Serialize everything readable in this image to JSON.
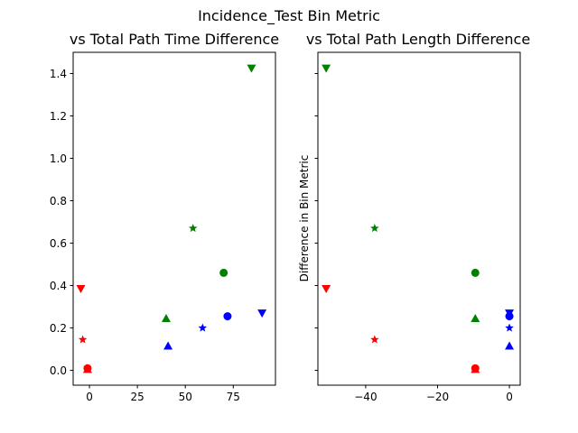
{
  "figure": {
    "suptitle": "Incidence_Test Bin Metric"
  },
  "colors": {
    "red": "#ff0000",
    "green": "#008000",
    "blue": "#0000ff"
  },
  "chart_data": [
    {
      "type": "scatter",
      "title": "vs Total Path Time Difference",
      "xlabel": "",
      "ylabel": "",
      "xlim": [
        -8.5,
        97
      ],
      "ylim": [
        -0.07,
        1.5
      ],
      "xticks": [
        0,
        25,
        50,
        75
      ],
      "yticks": [
        0.0,
        0.2,
        0.4,
        0.6,
        0.8,
        1.0,
        1.2,
        1.4
      ],
      "ytick_labels": [
        "0.0",
        "0.2",
        "0.4",
        "0.6",
        "0.8",
        "1.0",
        "1.2",
        "1.4"
      ],
      "xtick_labels": [
        "0",
        "25",
        "50",
        "75"
      ],
      "grid": false,
      "points": [
        {
          "x": -1,
          "y": 0.01,
          "color": "red",
          "marker": "circle"
        },
        {
          "x": -1,
          "y": 0.005,
          "color": "red",
          "marker": "triangle-up"
        },
        {
          "x": -3.5,
          "y": 0.145,
          "color": "red",
          "marker": "star"
        },
        {
          "x": -4.5,
          "y": 0.385,
          "color": "red",
          "marker": "triangle-down"
        },
        {
          "x": 70,
          "y": 0.46,
          "color": "green",
          "marker": "circle"
        },
        {
          "x": 40,
          "y": 0.245,
          "color": "green",
          "marker": "triangle-up"
        },
        {
          "x": 54,
          "y": 0.67,
          "color": "green",
          "marker": "star"
        },
        {
          "x": 84.5,
          "y": 1.425,
          "color": "green",
          "marker": "triangle-down"
        },
        {
          "x": 72,
          "y": 0.255,
          "color": "blue",
          "marker": "circle"
        },
        {
          "x": 41,
          "y": 0.115,
          "color": "blue",
          "marker": "triangle-up"
        },
        {
          "x": 59,
          "y": 0.2,
          "color": "blue",
          "marker": "star"
        },
        {
          "x": 90,
          "y": 0.27,
          "color": "blue",
          "marker": "triangle-down"
        }
      ]
    },
    {
      "type": "scatter",
      "title": "vs Total Path Length Difference",
      "xlabel": "",
      "ylabel": "Difference in Bin Metric",
      "xlim": [
        -53.3,
        3.0
      ],
      "ylim": [
        -0.07,
        1.5
      ],
      "xticks": [
        -40,
        -20,
        0
      ],
      "xtick_labels": [
        "−40",
        "−20",
        "0"
      ],
      "yticks": [
        0.0,
        0.2,
        0.4,
        0.6,
        0.8,
        1.0,
        1.2,
        1.4
      ],
      "ytick_labels": [],
      "grid": false,
      "points": [
        {
          "x": -9.5,
          "y": 0.01,
          "color": "red",
          "marker": "circle"
        },
        {
          "x": -9.5,
          "y": 0.005,
          "color": "red",
          "marker": "triangle-up"
        },
        {
          "x": -37.5,
          "y": 0.145,
          "color": "red",
          "marker": "star"
        },
        {
          "x": -51,
          "y": 0.385,
          "color": "red",
          "marker": "triangle-down"
        },
        {
          "x": -9.5,
          "y": 0.46,
          "color": "green",
          "marker": "circle"
        },
        {
          "x": -9.5,
          "y": 0.245,
          "color": "green",
          "marker": "triangle-up"
        },
        {
          "x": -37.5,
          "y": 0.67,
          "color": "green",
          "marker": "star"
        },
        {
          "x": -51,
          "y": 1.425,
          "color": "green",
          "marker": "triangle-down"
        },
        {
          "x": 0,
          "y": 0.255,
          "color": "blue",
          "marker": "circle"
        },
        {
          "x": 0,
          "y": 0.115,
          "color": "blue",
          "marker": "triangle-up"
        },
        {
          "x": 0,
          "y": 0.2,
          "color": "blue",
          "marker": "star"
        },
        {
          "x": 0,
          "y": 0.27,
          "color": "blue",
          "marker": "triangle-down"
        }
      ]
    }
  ]
}
